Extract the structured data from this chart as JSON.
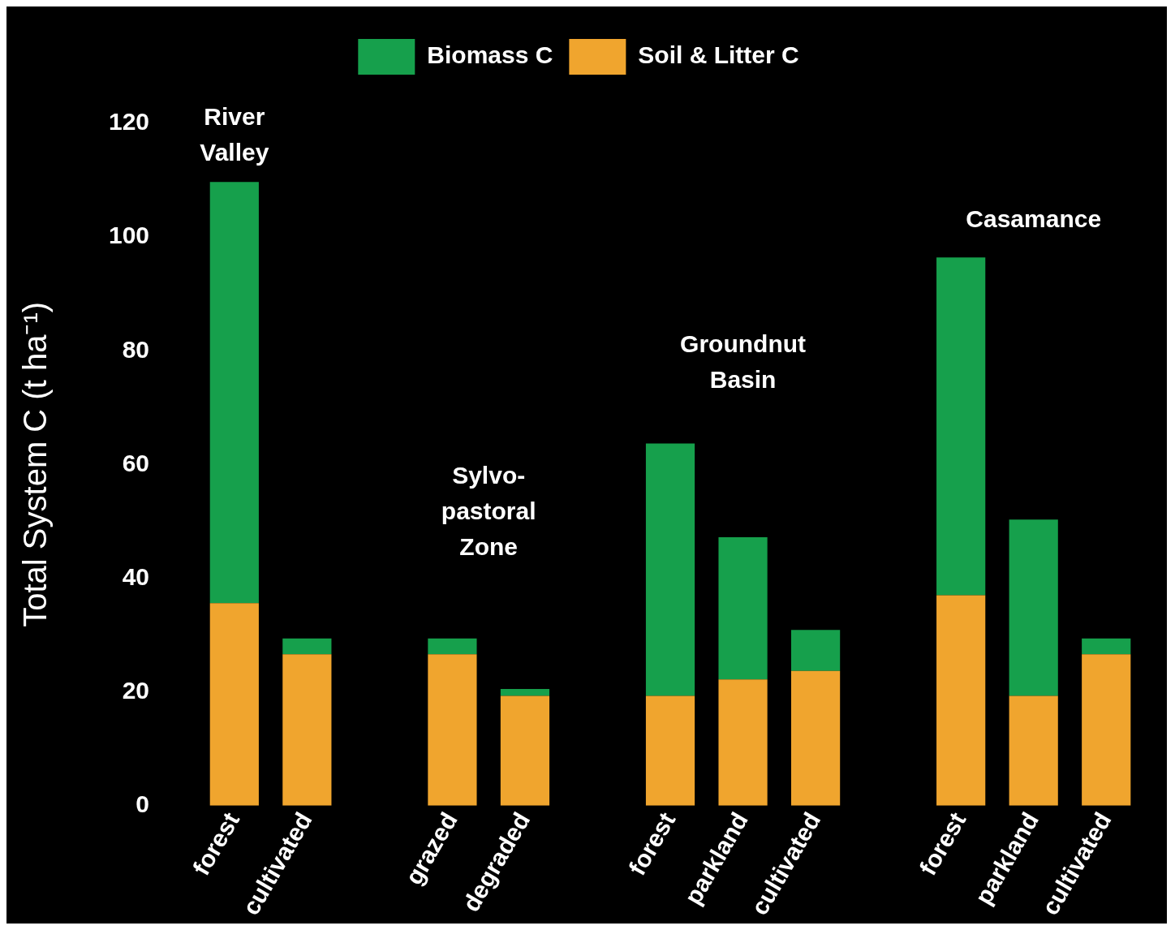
{
  "chart_data": {
    "type": "bar",
    "stacked": true,
    "ylabel": "Total System C (t ha⁻¹)",
    "categories": [
      "forest",
      "cultivated",
      null,
      "grazed",
      "degraded",
      null,
      "forest",
      "parkland",
      "cultivated",
      null,
      "forest",
      "parkland",
      "cultivated"
    ],
    "series": [
      {
        "name": "Soil & Litter C",
        "color": "#f0a52e",
        "values": [
          35.6,
          26.6,
          null,
          26.6,
          19.3,
          null,
          19.3,
          22.2,
          23.7,
          null,
          37.0,
          19.3,
          26.6
        ]
      },
      {
        "name": "Biomass C",
        "color": "#16a04c",
        "values": [
          74.1,
          2.8,
          null,
          2.8,
          1.2,
          null,
          44.4,
          25.0,
          7.2,
          null,
          59.4,
          31.0,
          2.8
        ]
      }
    ],
    "ylim": [
      0,
      120
    ],
    "yticks": [
      0,
      20,
      40,
      60,
      80,
      100,
      120
    ],
    "grid": false,
    "legend": "top",
    "annotations": [
      "River Valley",
      "Sylvo-pastoral Zone",
      "Groundnut Basin",
      "Casamance"
    ]
  }
}
